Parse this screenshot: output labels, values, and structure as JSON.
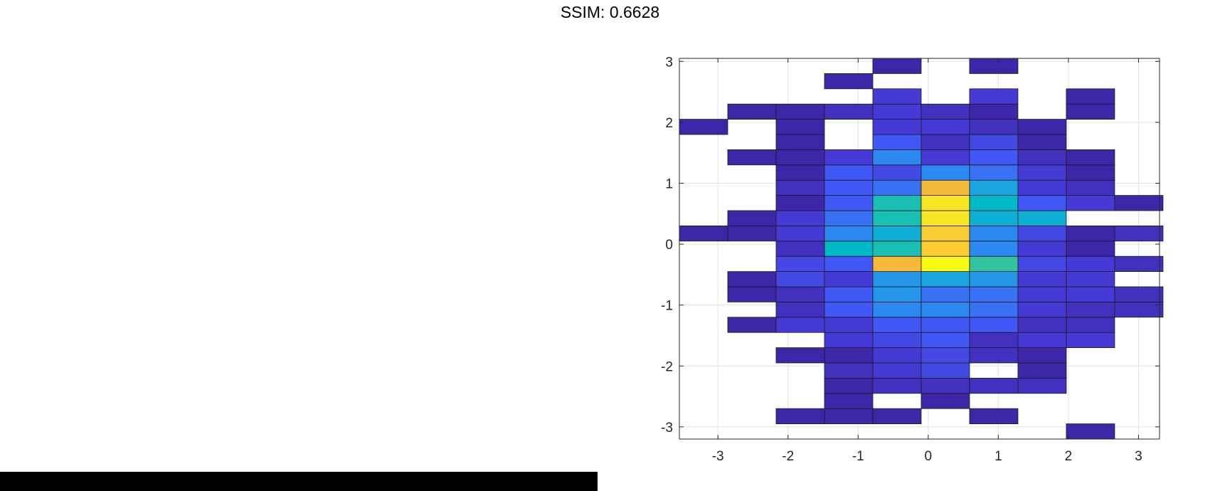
{
  "title": "SSIM: 0.6628",
  "chart_data": {
    "type": "heatmap",
    "title": "SSIM: 0.6628",
    "xlabel": "",
    "ylabel": "",
    "xlim": [
      -3.55,
      3.3
    ],
    "ylim": [
      -3.2,
      3.05
    ],
    "grid": true,
    "x_ticks": [
      -3,
      -2,
      -1,
      0,
      1,
      2,
      3
    ],
    "y_ticks": [
      -3,
      -2,
      -1,
      0,
      1,
      2,
      3
    ],
    "x_edges": [
      -3.55,
      -2.86,
      -2.17,
      -1.48,
      -0.79,
      -0.1,
      0.59,
      1.28,
      1.97,
      2.66,
      3.35
    ],
    "y_edges": [
      -3.2,
      -2.95,
      -2.7,
      -2.45,
      -2.2,
      -1.95,
      -1.7,
      -1.45,
      -1.2,
      -0.95,
      -0.7,
      -0.45,
      -0.2,
      0.05,
      0.3,
      0.55,
      0.8,
      1.05,
      1.3,
      1.55,
      1.8,
      2.05,
      2.3,
      2.55,
      2.8,
      3.05
    ],
    "count_max": 21,
    "counts": [
      [
        0,
        0,
        0,
        0,
        0,
        0,
        0,
        0,
        1,
        0
      ],
      [
        0,
        0,
        1,
        1,
        1,
        0,
        1,
        0,
        0,
        0
      ],
      [
        0,
        0,
        0,
        1,
        0,
        1,
        0,
        0,
        0,
        0
      ],
      [
        0,
        0,
        0,
        1,
        2,
        2,
        2,
        2,
        0,
        0
      ],
      [
        0,
        0,
        0,
        2,
        3,
        4,
        0,
        1,
        0,
        0
      ],
      [
        0,
        0,
        1,
        1,
        3,
        4,
        2,
        1,
        0,
        0
      ],
      [
        0,
        0,
        0,
        3,
        4,
        5,
        2,
        3,
        3,
        0
      ],
      [
        0,
        1,
        3,
        3,
        5,
        5,
        5,
        2,
        2,
        0
      ],
      [
        0,
        0,
        2,
        5,
        7,
        7,
        6,
        3,
        2,
        2
      ],
      [
        0,
        1,
        2,
        5,
        8,
        6,
        6,
        3,
        3,
        2
      ],
      [
        0,
        1,
        4,
        3,
        8,
        9,
        8,
        3,
        3,
        0
      ],
      [
        0,
        0,
        4,
        5,
        18,
        21,
        13,
        4,
        3,
        2
      ],
      [
        0,
        0,
        2,
        11,
        12,
        19,
        7,
        3,
        1,
        0
      ],
      [
        1,
        1,
        3,
        7,
        10,
        19,
        7,
        4,
        1,
        2
      ],
      [
        0,
        1,
        3,
        6,
        12,
        20,
        10,
        10,
        0,
        0
      ],
      [
        0,
        0,
        1,
        5,
        12,
        20,
        11,
        5,
        3,
        1
      ],
      [
        0,
        0,
        2,
        5,
        6,
        18,
        9,
        3,
        2,
        0
      ],
      [
        0,
        0,
        1,
        5,
        4,
        7,
        6,
        3,
        1,
        0
      ],
      [
        0,
        1,
        1,
        3,
        7,
        3,
        5,
        2,
        1,
        0
      ],
      [
        0,
        0,
        1,
        0,
        5,
        2,
        4,
        1,
        0,
        0
      ],
      [
        1,
        0,
        1,
        0,
        3,
        3,
        2,
        1,
        0,
        0
      ],
      [
        0,
        1,
        1,
        2,
        3,
        2,
        1,
        0,
        1,
        0
      ],
      [
        0,
        0,
        0,
        0,
        3,
        0,
        3,
        0,
        1,
        0
      ],
      [
        0,
        0,
        0,
        1,
        0,
        0,
        0,
        0,
        0,
        0
      ],
      [
        0,
        0,
        0,
        0,
        1,
        0,
        1,
        0,
        0,
        0
      ]
    ]
  }
}
